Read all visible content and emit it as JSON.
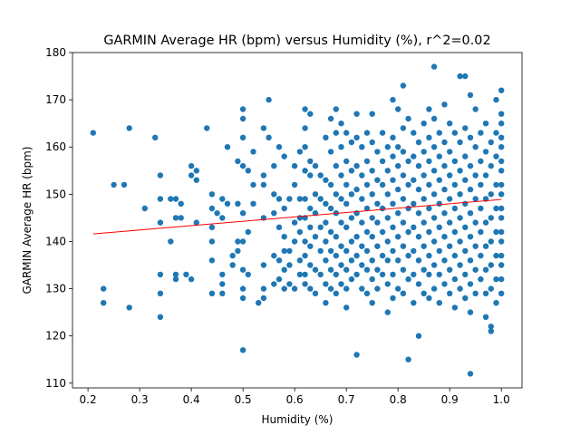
{
  "chart_data": {
    "type": "scatter",
    "title": "GARMIN Average HR (bpm) versus Humidity (%), r^2=0.02",
    "xlabel": "Humidity (%)",
    "ylabel": "GARMIN Average HR (bpm)",
    "xlim": [
      0.17,
      1.04
    ],
    "ylim": [
      109,
      180
    ],
    "xticks": [
      0.2,
      0.3,
      0.4,
      0.5,
      0.6,
      0.7,
      0.8,
      0.9,
      1.0
    ],
    "xtick_labels": [
      "0.2",
      "0.3",
      "0.4",
      "0.5",
      "0.6",
      "0.7",
      "0.8",
      "0.9",
      "1.0"
    ],
    "yticks": [
      110,
      120,
      130,
      140,
      150,
      160,
      170,
      180
    ],
    "ytick_labels": [
      "110",
      "120",
      "130",
      "140",
      "150",
      "160",
      "170",
      "180"
    ],
    "grid": false,
    "colors": {
      "points": "#1f77b4",
      "trend": "#ff0000"
    },
    "trendline": {
      "x": [
        0.21,
        1.0
      ],
      "y": [
        141.6,
        148.9
      ]
    },
    "points": [
      [
        0.21,
        163
      ],
      [
        0.23,
        130
      ],
      [
        0.23,
        127
      ],
      [
        0.25,
        152
      ],
      [
        0.27,
        152
      ],
      [
        0.28,
        164
      ],
      [
        0.28,
        126
      ],
      [
        0.31,
        147
      ],
      [
        0.33,
        162
      ],
      [
        0.34,
        154
      ],
      [
        0.34,
        149
      ],
      [
        0.34,
        144
      ],
      [
        0.34,
        133
      ],
      [
        0.34,
        129
      ],
      [
        0.34,
        124
      ],
      [
        0.36,
        149
      ],
      [
        0.36,
        140
      ],
      [
        0.37,
        149
      ],
      [
        0.37,
        145
      ],
      [
        0.37,
        133
      ],
      [
        0.37,
        132
      ],
      [
        0.38,
        148
      ],
      [
        0.38,
        145
      ],
      [
        0.39,
        133
      ],
      [
        0.4,
        156
      ],
      [
        0.4,
        154
      ],
      [
        0.4,
        132
      ],
      [
        0.41,
        155
      ],
      [
        0.41,
        153
      ],
      [
        0.41,
        144
      ],
      [
        0.43,
        164
      ],
      [
        0.44,
        150
      ],
      [
        0.44,
        147
      ],
      [
        0.44,
        143
      ],
      [
        0.44,
        140
      ],
      [
        0.44,
        136
      ],
      [
        0.44,
        129
      ],
      [
        0.45,
        146
      ],
      [
        0.46,
        149
      ],
      [
        0.46,
        145
      ],
      [
        0.46,
        133
      ],
      [
        0.46,
        131
      ],
      [
        0.46,
        129
      ],
      [
        0.47,
        160
      ],
      [
        0.47,
        148
      ],
      [
        0.48,
        137
      ],
      [
        0.48,
        135
      ],
      [
        0.49,
        157
      ],
      [
        0.49,
        148
      ],
      [
        0.49,
        140
      ],
      [
        0.49,
        138
      ],
      [
        0.5,
        168
      ],
      [
        0.5,
        166
      ],
      [
        0.5,
        162
      ],
      [
        0.5,
        156
      ],
      [
        0.5,
        146
      ],
      [
        0.5,
        140
      ],
      [
        0.5,
        134
      ],
      [
        0.5,
        130
      ],
      [
        0.5,
        128
      ],
      [
        0.5,
        117
      ],
      [
        0.51,
        155
      ],
      [
        0.51,
        142
      ],
      [
        0.51,
        133
      ],
      [
        0.52,
        159
      ],
      [
        0.52,
        152
      ],
      [
        0.52,
        148
      ],
      [
        0.53,
        127
      ],
      [
        0.54,
        164
      ],
      [
        0.54,
        154
      ],
      [
        0.54,
        152
      ],
      [
        0.54,
        145
      ],
      [
        0.54,
        135
      ],
      [
        0.54,
        130
      ],
      [
        0.54,
        128
      ],
      [
        0.55,
        170
      ],
      [
        0.55,
        162
      ],
      [
        0.56,
        156
      ],
      [
        0.56,
        150
      ],
      [
        0.56,
        146
      ],
      [
        0.56,
        137
      ],
      [
        0.56,
        131
      ],
      [
        0.57,
        160
      ],
      [
        0.57,
        149
      ],
      [
        0.57,
        143
      ],
      [
        0.57,
        136
      ],
      [
        0.57,
        132
      ],
      [
        0.58,
        158
      ],
      [
        0.58,
        147
      ],
      [
        0.58,
        141
      ],
      [
        0.58,
        138
      ],
      [
        0.58,
        134
      ],
      [
        0.58,
        130
      ],
      [
        0.59,
        149
      ],
      [
        0.59,
        138
      ],
      [
        0.59,
        135
      ],
      [
        0.59,
        131
      ],
      [
        0.6,
        156
      ],
      [
        0.6,
        152
      ],
      [
        0.6,
        144
      ],
      [
        0.6,
        140
      ],
      [
        0.6,
        130
      ],
      [
        0.61,
        159
      ],
      [
        0.61,
        149
      ],
      [
        0.61,
        145
      ],
      [
        0.61,
        142
      ],
      [
        0.61,
        136
      ],
      [
        0.61,
        133
      ],
      [
        0.62,
        168
      ],
      [
        0.62,
        164
      ],
      [
        0.62,
        160
      ],
      [
        0.62,
        155
      ],
      [
        0.62,
        149
      ],
      [
        0.62,
        145
      ],
      [
        0.62,
        140
      ],
      [
        0.62,
        137
      ],
      [
        0.62,
        133
      ],
      [
        0.62,
        131
      ],
      [
        0.63,
        167
      ],
      [
        0.63,
        157
      ],
      [
        0.63,
        154
      ],
      [
        0.63,
        147
      ],
      [
        0.63,
        143
      ],
      [
        0.63,
        139
      ],
      [
        0.63,
        135
      ],
      [
        0.63,
        130
      ],
      [
        0.64,
        156
      ],
      [
        0.64,
        150
      ],
      [
        0.64,
        146
      ],
      [
        0.64,
        141
      ],
      [
        0.64,
        134
      ],
      [
        0.64,
        129
      ],
      [
        0.65,
        154
      ],
      [
        0.65,
        149
      ],
      [
        0.65,
        143
      ],
      [
        0.65,
        138
      ],
      [
        0.65,
        133
      ],
      [
        0.66,
        162
      ],
      [
        0.66,
        153
      ],
      [
        0.66,
        148
      ],
      [
        0.66,
        144
      ],
      [
        0.66,
        140
      ],
      [
        0.66,
        136
      ],
      [
        0.66,
        131
      ],
      [
        0.66,
        127
      ],
      [
        0.67,
        166
      ],
      [
        0.67,
        159
      ],
      [
        0.67,
        152
      ],
      [
        0.67,
        147
      ],
      [
        0.67,
        142
      ],
      [
        0.67,
        138
      ],
      [
        0.67,
        134
      ],
      [
        0.67,
        130
      ],
      [
        0.68,
        168
      ],
      [
        0.68,
        163
      ],
      [
        0.68,
        156
      ],
      [
        0.68,
        150
      ],
      [
        0.68,
        146
      ],
      [
        0.68,
        141
      ],
      [
        0.68,
        137
      ],
      [
        0.68,
        133
      ],
      [
        0.68,
        129
      ],
      [
        0.69,
        165
      ],
      [
        0.69,
        160
      ],
      [
        0.69,
        154
      ],
      [
        0.69,
        149
      ],
      [
        0.69,
        144
      ],
      [
        0.69,
        139
      ],
      [
        0.69,
        135
      ],
      [
        0.69,
        131
      ],
      [
        0.7,
        163
      ],
      [
        0.7,
        157
      ],
      [
        0.7,
        152
      ],
      [
        0.7,
        148
      ],
      [
        0.7,
        143
      ],
      [
        0.7,
        138
      ],
      [
        0.7,
        134
      ],
      [
        0.7,
        130
      ],
      [
        0.7,
        126
      ],
      [
        0.71,
        161
      ],
      [
        0.71,
        155
      ],
      [
        0.71,
        150
      ],
      [
        0.71,
        145
      ],
      [
        0.71,
        140
      ],
      [
        0.71,
        136
      ],
      [
        0.71,
        132
      ],
      [
        0.72,
        167
      ],
      [
        0.72,
        162
      ],
      [
        0.72,
        156
      ],
      [
        0.72,
        151
      ],
      [
        0.72,
        146
      ],
      [
        0.72,
        141
      ],
      [
        0.72,
        137
      ],
      [
        0.72,
        133
      ],
      [
        0.72,
        116
      ],
      [
        0.73,
        160
      ],
      [
        0.73,
        154
      ],
      [
        0.73,
        149
      ],
      [
        0.73,
        144
      ],
      [
        0.73,
        139
      ],
      [
        0.73,
        135
      ],
      [
        0.73,
        130
      ],
      [
        0.74,
        163
      ],
      [
        0.74,
        157
      ],
      [
        0.74,
        152
      ],
      [
        0.74,
        147
      ],
      [
        0.74,
        142
      ],
      [
        0.74,
        138
      ],
      [
        0.74,
        134
      ],
      [
        0.74,
        129
      ],
      [
        0.75,
        167
      ],
      [
        0.75,
        161
      ],
      [
        0.75,
        155
      ],
      [
        0.75,
        150
      ],
      [
        0.75,
        145
      ],
      [
        0.75,
        141
      ],
      [
        0.75,
        136
      ],
      [
        0.75,
        132
      ],
      [
        0.75,
        127
      ],
      [
        0.76,
        159
      ],
      [
        0.76,
        153
      ],
      [
        0.76,
        148
      ],
      [
        0.76,
        144
      ],
      [
        0.76,
        139
      ],
      [
        0.76,
        134
      ],
      [
        0.76,
        130
      ],
      [
        0.77,
        163
      ],
      [
        0.77,
        157
      ],
      [
        0.77,
        152
      ],
      [
        0.77,
        147
      ],
      [
        0.77,
        142
      ],
      [
        0.77,
        137
      ],
      [
        0.77,
        133
      ],
      [
        0.78,
        160
      ],
      [
        0.78,
        155
      ],
      [
        0.78,
        150
      ],
      [
        0.78,
        145
      ],
      [
        0.78,
        140
      ],
      [
        0.78,
        136
      ],
      [
        0.78,
        131
      ],
      [
        0.78,
        125
      ],
      [
        0.79,
        170
      ],
      [
        0.79,
        162
      ],
      [
        0.79,
        158
      ],
      [
        0.79,
        153
      ],
      [
        0.79,
        148
      ],
      [
        0.79,
        143
      ],
      [
        0.79,
        138
      ],
      [
        0.79,
        133
      ],
      [
        0.79,
        128
      ],
      [
        0.8,
        168
      ],
      [
        0.8,
        160
      ],
      [
        0.8,
        156
      ],
      [
        0.8,
        151
      ],
      [
        0.8,
        146
      ],
      [
        0.8,
        141
      ],
      [
        0.8,
        136
      ],
      [
        0.8,
        130
      ],
      [
        0.81,
        173
      ],
      [
        0.81,
        164
      ],
      [
        0.81,
        159
      ],
      [
        0.81,
        154
      ],
      [
        0.81,
        149
      ],
      [
        0.81,
        144
      ],
      [
        0.81,
        139
      ],
      [
        0.81,
        134
      ],
      [
        0.81,
        129
      ],
      [
        0.82,
        166
      ],
      [
        0.82,
        157
      ],
      [
        0.82,
        152
      ],
      [
        0.82,
        147
      ],
      [
        0.82,
        142
      ],
      [
        0.82,
        137
      ],
      [
        0.82,
        132
      ],
      [
        0.82,
        115
      ],
      [
        0.83,
        163
      ],
      [
        0.83,
        158
      ],
      [
        0.83,
        153
      ],
      [
        0.83,
        148
      ],
      [
        0.83,
        143
      ],
      [
        0.83,
        138
      ],
      [
        0.83,
        133
      ],
      [
        0.83,
        127
      ],
      [
        0.84,
        161
      ],
      [
        0.84,
        156
      ],
      [
        0.84,
        151
      ],
      [
        0.84,
        146
      ],
      [
        0.84,
        141
      ],
      [
        0.84,
        136
      ],
      [
        0.84,
        131
      ],
      [
        0.84,
        120
      ],
      [
        0.85,
        165
      ],
      [
        0.85,
        159
      ],
      [
        0.85,
        154
      ],
      [
        0.85,
        149
      ],
      [
        0.85,
        144
      ],
      [
        0.85,
        139
      ],
      [
        0.85,
        134
      ],
      [
        0.85,
        129
      ],
      [
        0.86,
        168
      ],
      [
        0.86,
        162
      ],
      [
        0.86,
        157
      ],
      [
        0.86,
        152
      ],
      [
        0.86,
        147
      ],
      [
        0.86,
        142
      ],
      [
        0.86,
        137
      ],
      [
        0.86,
        133
      ],
      [
        0.86,
        128
      ],
      [
        0.87,
        177
      ],
      [
        0.87,
        166
      ],
      [
        0.87,
        160
      ],
      [
        0.87,
        155
      ],
      [
        0.87,
        150
      ],
      [
        0.87,
        145
      ],
      [
        0.87,
        140
      ],
      [
        0.87,
        135
      ],
      [
        0.87,
        130
      ],
      [
        0.88,
        163
      ],
      [
        0.88,
        158
      ],
      [
        0.88,
        153
      ],
      [
        0.88,
        148
      ],
      [
        0.88,
        143
      ],
      [
        0.88,
        138
      ],
      [
        0.88,
        133
      ],
      [
        0.88,
        127
      ],
      [
        0.89,
        169
      ],
      [
        0.89,
        161
      ],
      [
        0.89,
        156
      ],
      [
        0.89,
        151
      ],
      [
        0.89,
        146
      ],
      [
        0.89,
        141
      ],
      [
        0.89,
        136
      ],
      [
        0.89,
        131
      ],
      [
        0.9,
        165
      ],
      [
        0.9,
        159
      ],
      [
        0.9,
        154
      ],
      [
        0.9,
        149
      ],
      [
        0.9,
        144
      ],
      [
        0.9,
        139
      ],
      [
        0.9,
        134
      ],
      [
        0.9,
        129
      ],
      [
        0.91,
        163
      ],
      [
        0.91,
        157
      ],
      [
        0.91,
        152
      ],
      [
        0.91,
        147
      ],
      [
        0.91,
        142
      ],
      [
        0.91,
        137
      ],
      [
        0.91,
        132
      ],
      [
        0.91,
        126
      ],
      [
        0.92,
        175
      ],
      [
        0.92,
        161
      ],
      [
        0.92,
        155
      ],
      [
        0.92,
        150
      ],
      [
        0.92,
        145
      ],
      [
        0.92,
        140
      ],
      [
        0.92,
        135
      ],
      [
        0.92,
        130
      ],
      [
        0.93,
        175
      ],
      [
        0.93,
        164
      ],
      [
        0.93,
        158
      ],
      [
        0.93,
        153
      ],
      [
        0.93,
        148
      ],
      [
        0.93,
        143
      ],
      [
        0.93,
        138
      ],
      [
        0.93,
        133
      ],
      [
        0.93,
        128
      ],
      [
        0.94,
        171
      ],
      [
        0.94,
        162
      ],
      [
        0.94,
        156
      ],
      [
        0.94,
        151
      ],
      [
        0.94,
        146
      ],
      [
        0.94,
        141
      ],
      [
        0.94,
        136
      ],
      [
        0.94,
        131
      ],
      [
        0.94,
        125
      ],
      [
        0.94,
        112
      ],
      [
        0.95,
        168
      ],
      [
        0.95,
        160
      ],
      [
        0.95,
        154
      ],
      [
        0.95,
        149
      ],
      [
        0.95,
        144
      ],
      [
        0.95,
        139
      ],
      [
        0.95,
        134
      ],
      [
        0.95,
        129
      ],
      [
        0.96,
        163
      ],
      [
        0.96,
        157
      ],
      [
        0.96,
        152
      ],
      [
        0.96,
        147
      ],
      [
        0.96,
        142
      ],
      [
        0.96,
        137
      ],
      [
        0.96,
        132
      ],
      [
        0.97,
        165
      ],
      [
        0.97,
        159
      ],
      [
        0.97,
        154
      ],
      [
        0.97,
        149
      ],
      [
        0.97,
        144
      ],
      [
        0.97,
        139
      ],
      [
        0.97,
        134
      ],
      [
        0.97,
        129
      ],
      [
        0.97,
        124
      ],
      [
        0.98,
        161
      ],
      [
        0.98,
        156
      ],
      [
        0.98,
        150
      ],
      [
        0.98,
        145
      ],
      [
        0.98,
        140
      ],
      [
        0.98,
        135
      ],
      [
        0.98,
        130
      ],
      [
        0.98,
        122
      ],
      [
        0.98,
        121
      ],
      [
        0.99,
        170
      ],
      [
        0.99,
        163
      ],
      [
        0.99,
        158
      ],
      [
        0.99,
        152
      ],
      [
        0.99,
        147
      ],
      [
        0.99,
        142
      ],
      [
        0.99,
        137
      ],
      [
        0.99,
        132
      ],
      [
        0.99,
        127
      ],
      [
        1.0,
        172
      ],
      [
        1.0,
        167
      ],
      [
        1.0,
        162
      ],
      [
        1.0,
        157
      ],
      [
        1.0,
        152
      ],
      [
        1.0,
        147
      ],
      [
        1.0,
        142
      ],
      [
        1.0,
        137
      ],
      [
        1.0,
        132
      ],
      [
        1.0,
        129
      ],
      [
        1.0,
        165
      ],
      [
        1.0,
        160
      ],
      [
        1.0,
        155
      ],
      [
        1.0,
        150
      ],
      [
        1.0,
        145
      ],
      [
        1.0,
        140
      ],
      [
        1.0,
        135
      ]
    ]
  }
}
